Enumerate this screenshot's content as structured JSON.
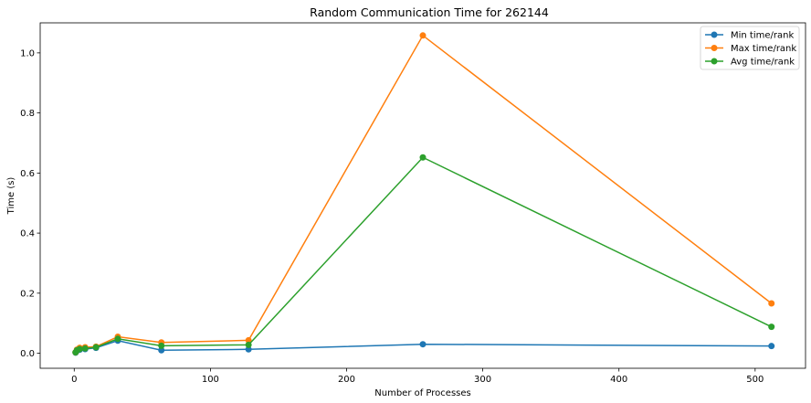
{
  "chart_data": {
    "type": "line",
    "title": "Random Communication Time for 262144",
    "xlabel": "Number of Processes",
    "ylabel": "Time (s)",
    "xlim": [
      -25,
      537
    ],
    "ylim": [
      -0.05,
      1.1
    ],
    "xticks": [
      0,
      100,
      200,
      300,
      400,
      500
    ],
    "yticks": [
      0.0,
      0.2,
      0.4,
      0.6,
      0.8,
      1.0
    ],
    "xtick_labels": [
      "0",
      "100",
      "200",
      "300",
      "400",
      "500"
    ],
    "ytick_labels": [
      "0.0",
      "0.2",
      "0.4",
      "0.6",
      "0.8",
      "1.0"
    ],
    "legend_position": "top-right",
    "grid": false,
    "x": [
      1,
      2,
      4,
      8,
      16,
      32,
      64,
      128,
      256,
      512
    ],
    "series": [
      {
        "name": "Min time/rank",
        "color": "#1f77b4",
        "values": [
          0.002,
          0.008,
          0.012,
          0.014,
          0.018,
          0.042,
          0.01,
          0.013,
          0.03,
          0.024
        ]
      },
      {
        "name": "Max time/rank",
        "color": "#ff7f0e",
        "values": [
          0.003,
          0.012,
          0.018,
          0.02,
          0.022,
          0.055,
          0.036,
          0.043,
          1.058,
          0.166
        ]
      },
      {
        "name": "Avg time/rank",
        "color": "#2ca02c",
        "values": [
          0.003,
          0.01,
          0.014,
          0.016,
          0.02,
          0.048,
          0.025,
          0.028,
          0.652,
          0.088
        ]
      }
    ]
  }
}
